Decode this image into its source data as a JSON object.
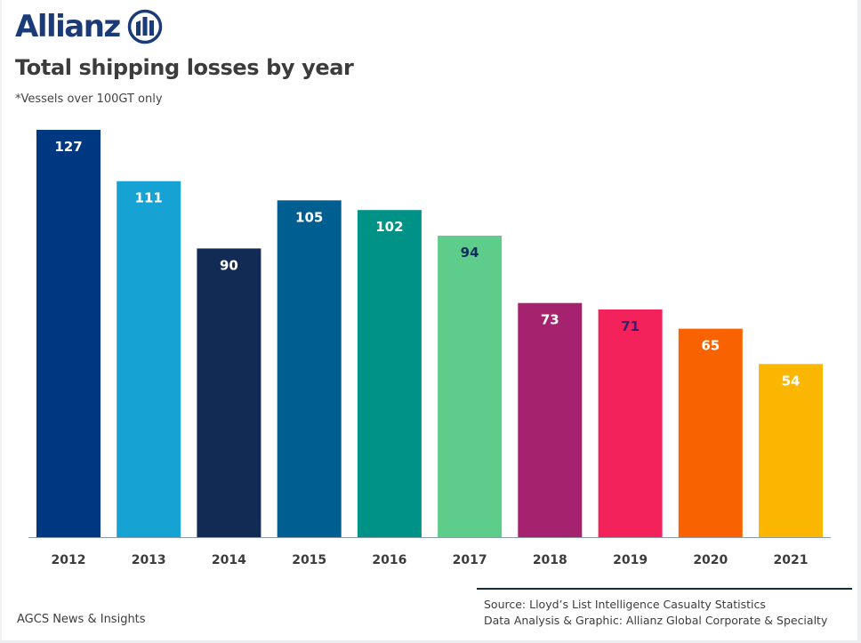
{
  "brand": {
    "name": "Allianz",
    "logo_icon": "allianz-eagle-pillars-icon",
    "color": "#1b3a78"
  },
  "header": {
    "title": "Total shipping losses by year",
    "subtitle": "*Vessels over 100GT only"
  },
  "chart_data": {
    "type": "bar",
    "title": "Total shipping losses by year",
    "subtitle": "*Vessels over 100GT only",
    "xlabel": "",
    "ylabel": "",
    "ylim": [
      0,
      127
    ],
    "grid": false,
    "legend": "none",
    "categories": [
      "2012",
      "2013",
      "2014",
      "2015",
      "2016",
      "2017",
      "2018",
      "2019",
      "2020",
      "2021"
    ],
    "values": [
      127,
      111,
      90,
      105,
      102,
      94,
      73,
      71,
      65,
      54
    ],
    "colors": [
      "#003781",
      "#17a2d4",
      "#122b54",
      "#005e91",
      "#009187",
      "#5ecc8a",
      "#a5236e",
      "#f3225a",
      "#f86200",
      "#fab600"
    ],
    "label_colors": [
      "#ffffff",
      "#ffffff",
      "#ffffff",
      "#ffffff",
      "#ffffff",
      "#0d2d5e",
      "#ffffff",
      "#3a1d6e",
      "#ffffff",
      "#ffffff"
    ],
    "axis_color": "#8a9aaa"
  },
  "footer": {
    "publisher": "AGCS News & Insights",
    "source_line1": "Source: Lloyd’s List Intelligence Casualty Statistics",
    "source_line2": "Data Analysis & Graphic: Allianz Global Corporate & Specialty"
  }
}
